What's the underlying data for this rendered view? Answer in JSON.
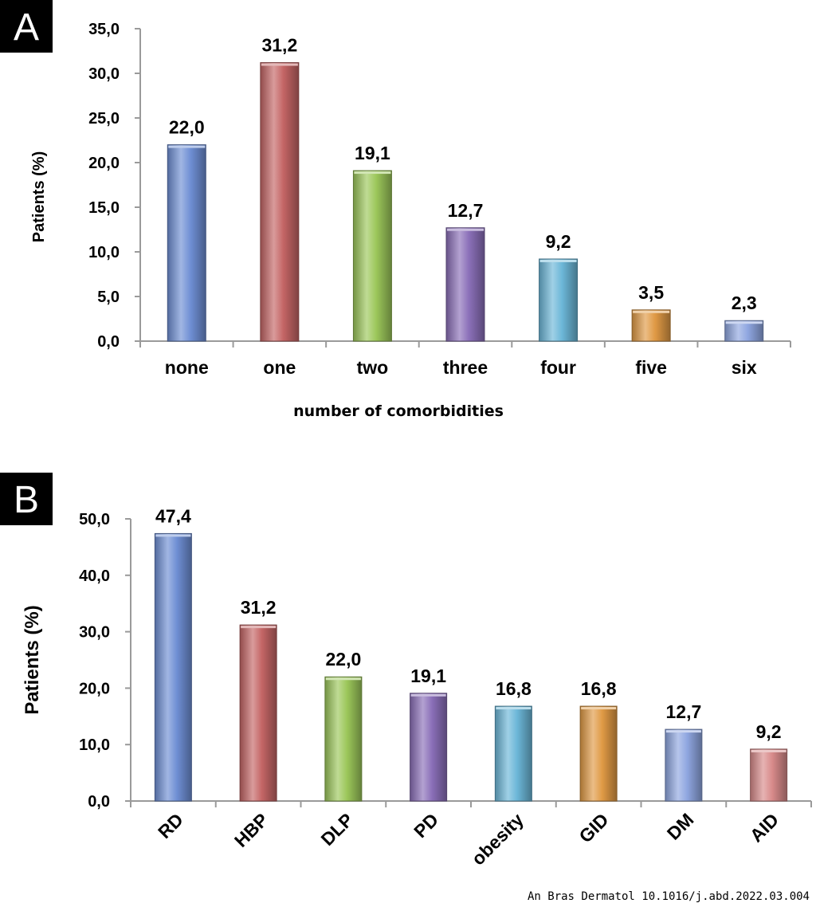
{
  "chart_data": [
    {
      "type": "bar",
      "panel": "A",
      "title": "",
      "xlabel": "number of comorbidities",
      "ylabel": "Patients (%)",
      "ylim": [
        0,
        35
      ],
      "yticks": [
        "0,0",
        "5,0",
        "10,0",
        "15,0",
        "20,0",
        "25,0",
        "30,0",
        "35,0"
      ],
      "categories": [
        "none",
        "one",
        "two",
        "three",
        "four",
        "five",
        "six"
      ],
      "values": [
        22.0,
        31.2,
        19.1,
        12.7,
        9.2,
        3.5,
        2.3
      ],
      "value_labels": [
        "22,0",
        "31,2",
        "19,1",
        "12,7",
        "9,2",
        "3,5",
        "2,3"
      ],
      "colors": [
        "#6f8fd4",
        "#c46565",
        "#9cc75a",
        "#8a6fb8",
        "#6cb7d8",
        "#e09a45",
        "#8fa6e0"
      ],
      "grid": false,
      "legend": "none"
    },
    {
      "type": "bar",
      "panel": "B",
      "title": "",
      "xlabel": "",
      "ylabel": "Patients (%)",
      "ylim": [
        0,
        50
      ],
      "yticks": [
        "0,0",
        "10,0",
        "20,0",
        "30,0",
        "40,0",
        "50,0"
      ],
      "categories": [
        "RD",
        "HBP",
        "DLP",
        "PD",
        "obesity",
        "GID",
        "DM",
        "AID"
      ],
      "values": [
        47.4,
        31.2,
        22.0,
        19.1,
        16.8,
        16.8,
        12.7,
        9.2
      ],
      "value_labels": [
        "47,4",
        "31,2",
        "22,0",
        "19,1",
        "16,8",
        "16,8",
        "12,7",
        "9,2"
      ],
      "colors": [
        "#6f8fd4",
        "#c46565",
        "#9cc75a",
        "#8a6fb8",
        "#6cb7d8",
        "#e09a45",
        "#8fa6e0",
        "#d88a8a"
      ],
      "grid": false,
      "legend": "none"
    }
  ],
  "citation": "An Bras Dermatol 10.1016/j.abd.2022.03.004"
}
